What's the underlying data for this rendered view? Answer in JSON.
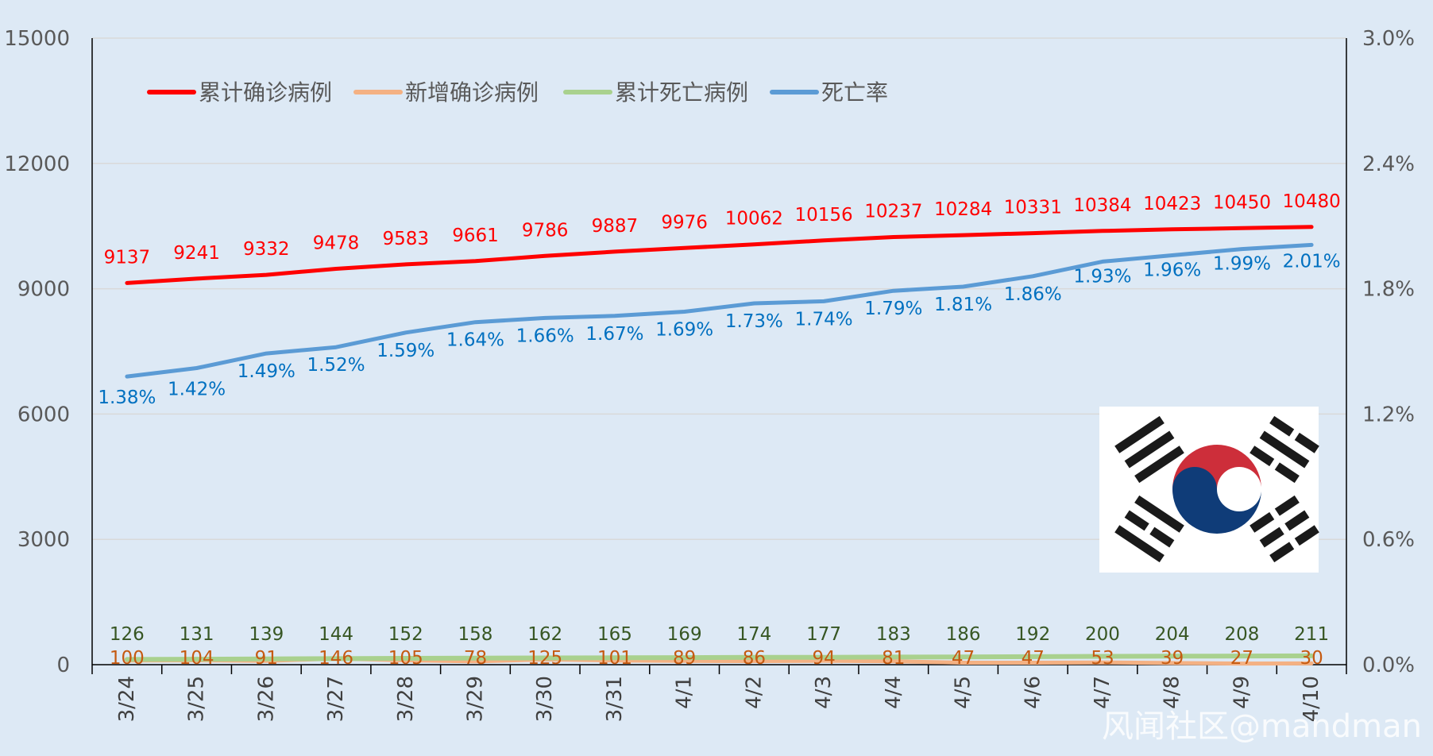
{
  "chart_data": {
    "type": "line",
    "title": "",
    "categories": [
      "3/24",
      "3/25",
      "3/26",
      "3/27",
      "3/28",
      "3/29",
      "3/30",
      "3/31",
      "4/1",
      "4/2",
      "4/3",
      "4/4",
      "4/5",
      "4/6",
      "4/7",
      "4/8",
      "4/9",
      "4/10"
    ],
    "y_left": {
      "min": 0,
      "max": 15000,
      "ticks": [
        "0",
        "3000",
        "6000",
        "9000",
        "12000",
        "15000"
      ]
    },
    "y_right": {
      "min": 0,
      "max": 0.03,
      "ticks": [
        "0.0%",
        "0.6%",
        "1.2%",
        "1.8%",
        "2.4%",
        "3.0%"
      ]
    },
    "grid": true,
    "legend_position": "top-left",
    "series": [
      {
        "name": "累计确诊病例",
        "axis": "left",
        "color": "#ff0000",
        "label_color": "#ff0000",
        "values": [
          9137,
          9241,
          9332,
          9478,
          9583,
          9661,
          9786,
          9887,
          9976,
          10062,
          10156,
          10237,
          10284,
          10331,
          10384,
          10423,
          10450,
          10480
        ],
        "labels": [
          "9137",
          "9241",
          "9332",
          "9478",
          "9583",
          "9661",
          "9786",
          "9887",
          "9976",
          "10062",
          "10156",
          "10237",
          "10284",
          "10331",
          "10384",
          "10423",
          "10450",
          "10480"
        ]
      },
      {
        "name": "新增确诊病例",
        "axis": "left",
        "color": "#f4b183",
        "label_color": "#c55a11",
        "values": [
          100,
          104,
          91,
          146,
          105,
          78,
          125,
          101,
          89,
          86,
          94,
          81,
          47,
          47,
          53,
          39,
          27,
          30
        ],
        "labels": [
          "100",
          "104",
          "91",
          "146",
          "105",
          "78",
          "125",
          "101",
          "89",
          "86",
          "94",
          "81",
          "47",
          "47",
          "53",
          "39",
          "27",
          "30"
        ]
      },
      {
        "name": "累计死亡病例",
        "axis": "left",
        "color": "#a9d18e",
        "label_color": "#375623",
        "values": [
          126,
          131,
          139,
          144,
          152,
          158,
          162,
          165,
          169,
          174,
          177,
          183,
          186,
          192,
          200,
          204,
          208,
          211
        ],
        "labels": [
          "126",
          "131",
          "139",
          "144",
          "152",
          "158",
          "162",
          "165",
          "169",
          "174",
          "177",
          "183",
          "186",
          "192",
          "200",
          "204",
          "208",
          "211"
        ]
      },
      {
        "name": "死亡率",
        "axis": "right",
        "color": "#5b9bd5",
        "label_color": "#0070c0",
        "values": [
          0.0138,
          0.0142,
          0.0149,
          0.0152,
          0.0159,
          0.0164,
          0.0166,
          0.0167,
          0.0169,
          0.0173,
          0.0174,
          0.0179,
          0.0181,
          0.0186,
          0.0193,
          0.0196,
          0.0199,
          0.0201
        ],
        "labels": [
          "1.38%",
          "1.42%",
          "1.49%",
          "1.52%",
          "1.59%",
          "1.64%",
          "1.66%",
          "1.67%",
          "1.69%",
          "1.73%",
          "1.74%",
          "1.79%",
          "1.81%",
          "1.86%",
          "1.93%",
          "1.96%",
          "1.99%",
          "2.01%"
        ]
      }
    ]
  },
  "flag": {
    "icon": "south-korea-flag-icon"
  },
  "watermark": "风闻社区@mandman"
}
